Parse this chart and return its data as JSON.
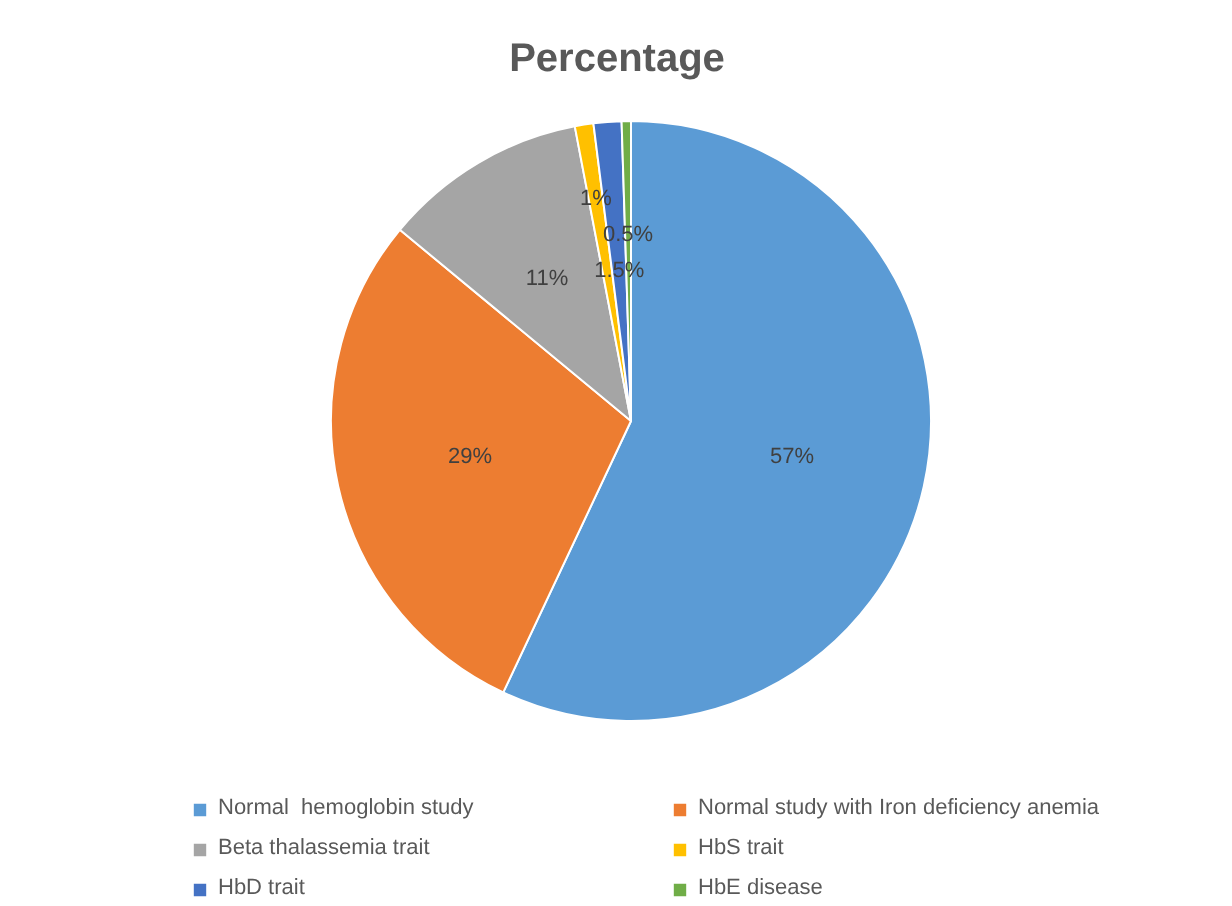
{
  "chart_data": {
    "type": "pie",
    "title": "Percentage",
    "categories": [
      "Normal  hemoglobin study",
      "Normal study with Iron deficiency anemia",
      "Beta thalassemia trait",
      "HbS trait",
      "HbD trait",
      "HbE disease"
    ],
    "values": [
      57,
      29,
      11,
      1,
      1.5,
      0.5
    ],
    "colors": [
      "#5b9bd5",
      "#ed7d31",
      "#a5a5a5",
      "#ffc000",
      "#4472c4",
      "#70ad47"
    ],
    "value_labels": [
      "57%",
      "29%",
      "11%",
      "1%",
      "1.5%",
      "0.5%"
    ],
    "legend": "bottom"
  }
}
